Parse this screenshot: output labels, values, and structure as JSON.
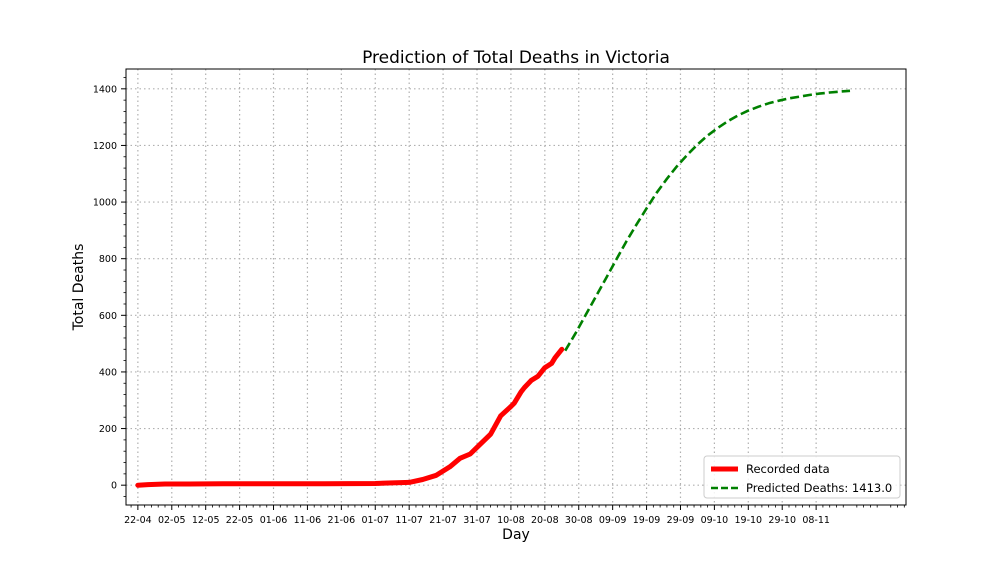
{
  "chart_data": {
    "type": "line",
    "title": "Prediction of Total Deaths in Victoria",
    "xlabel": "Day",
    "ylabel": "Total Deaths",
    "ylim": [
      -70,
      1470
    ],
    "y_ticks": [
      0,
      200,
      400,
      600,
      800,
      1000,
      1200,
      1400
    ],
    "grid": true,
    "legend_position": "bottom-right",
    "x_axis": {
      "start_label": "22-04",
      "x_range_days": [
        -3.5,
        226.5
      ],
      "tick_days": [
        0,
        10,
        20,
        30,
        40,
        50,
        60,
        70,
        80,
        90,
        100,
        110,
        120,
        130,
        140,
        150,
        160,
        170,
        180,
        190,
        200
      ],
      "tick_labels": [
        "22-04",
        "02-05",
        "12-05",
        "22-05",
        "01-06",
        "11-06",
        "21-06",
        "01-07",
        "11-07",
        "21-07",
        "31-07",
        "10-08",
        "20-08",
        "30-08",
        "09-09",
        "19-09",
        "29-09",
        "09-10",
        "19-10",
        "29-10",
        "08-11"
      ]
    },
    "series": [
      {
        "name": "Recorded data",
        "color": "#ff0000",
        "style": "solid",
        "x": [
          0,
          3,
          8,
          15,
          25,
          40,
          55,
          70,
          75,
          80,
          84,
          88,
          92,
          95,
          98,
          101,
          104,
          107,
          110,
          111,
          113,
          114,
          116,
          118,
          120,
          122,
          123,
          125
        ],
        "y": [
          0,
          2,
          4,
          4,
          5,
          5,
          5,
          6,
          8,
          10,
          20,
          35,
          65,
          95,
          110,
          145,
          180,
          245,
          278,
          290,
          330,
          345,
          370,
          385,
          415,
          430,
          450,
          480
        ]
      },
      {
        "name": "Predicted Deaths: 1413.0",
        "color": "#008000",
        "style": "dashed",
        "x": [
          126,
          129,
          132,
          135,
          138,
          141,
          144,
          147,
          150,
          153,
          156,
          159,
          162,
          165,
          168,
          171,
          174,
          177,
          180,
          183,
          186,
          189,
          192,
          195,
          198,
          201,
          204,
          207,
          210
        ],
        "y": [
          475,
          535,
          600,
          665,
          730,
          795,
          860,
          920,
          978,
          1033,
          1082,
          1127,
          1167,
          1203,
          1235,
          1262,
          1286,
          1306,
          1323,
          1337,
          1349,
          1358,
          1366,
          1372,
          1378,
          1383,
          1387,
          1390,
          1393
        ]
      }
    ]
  }
}
